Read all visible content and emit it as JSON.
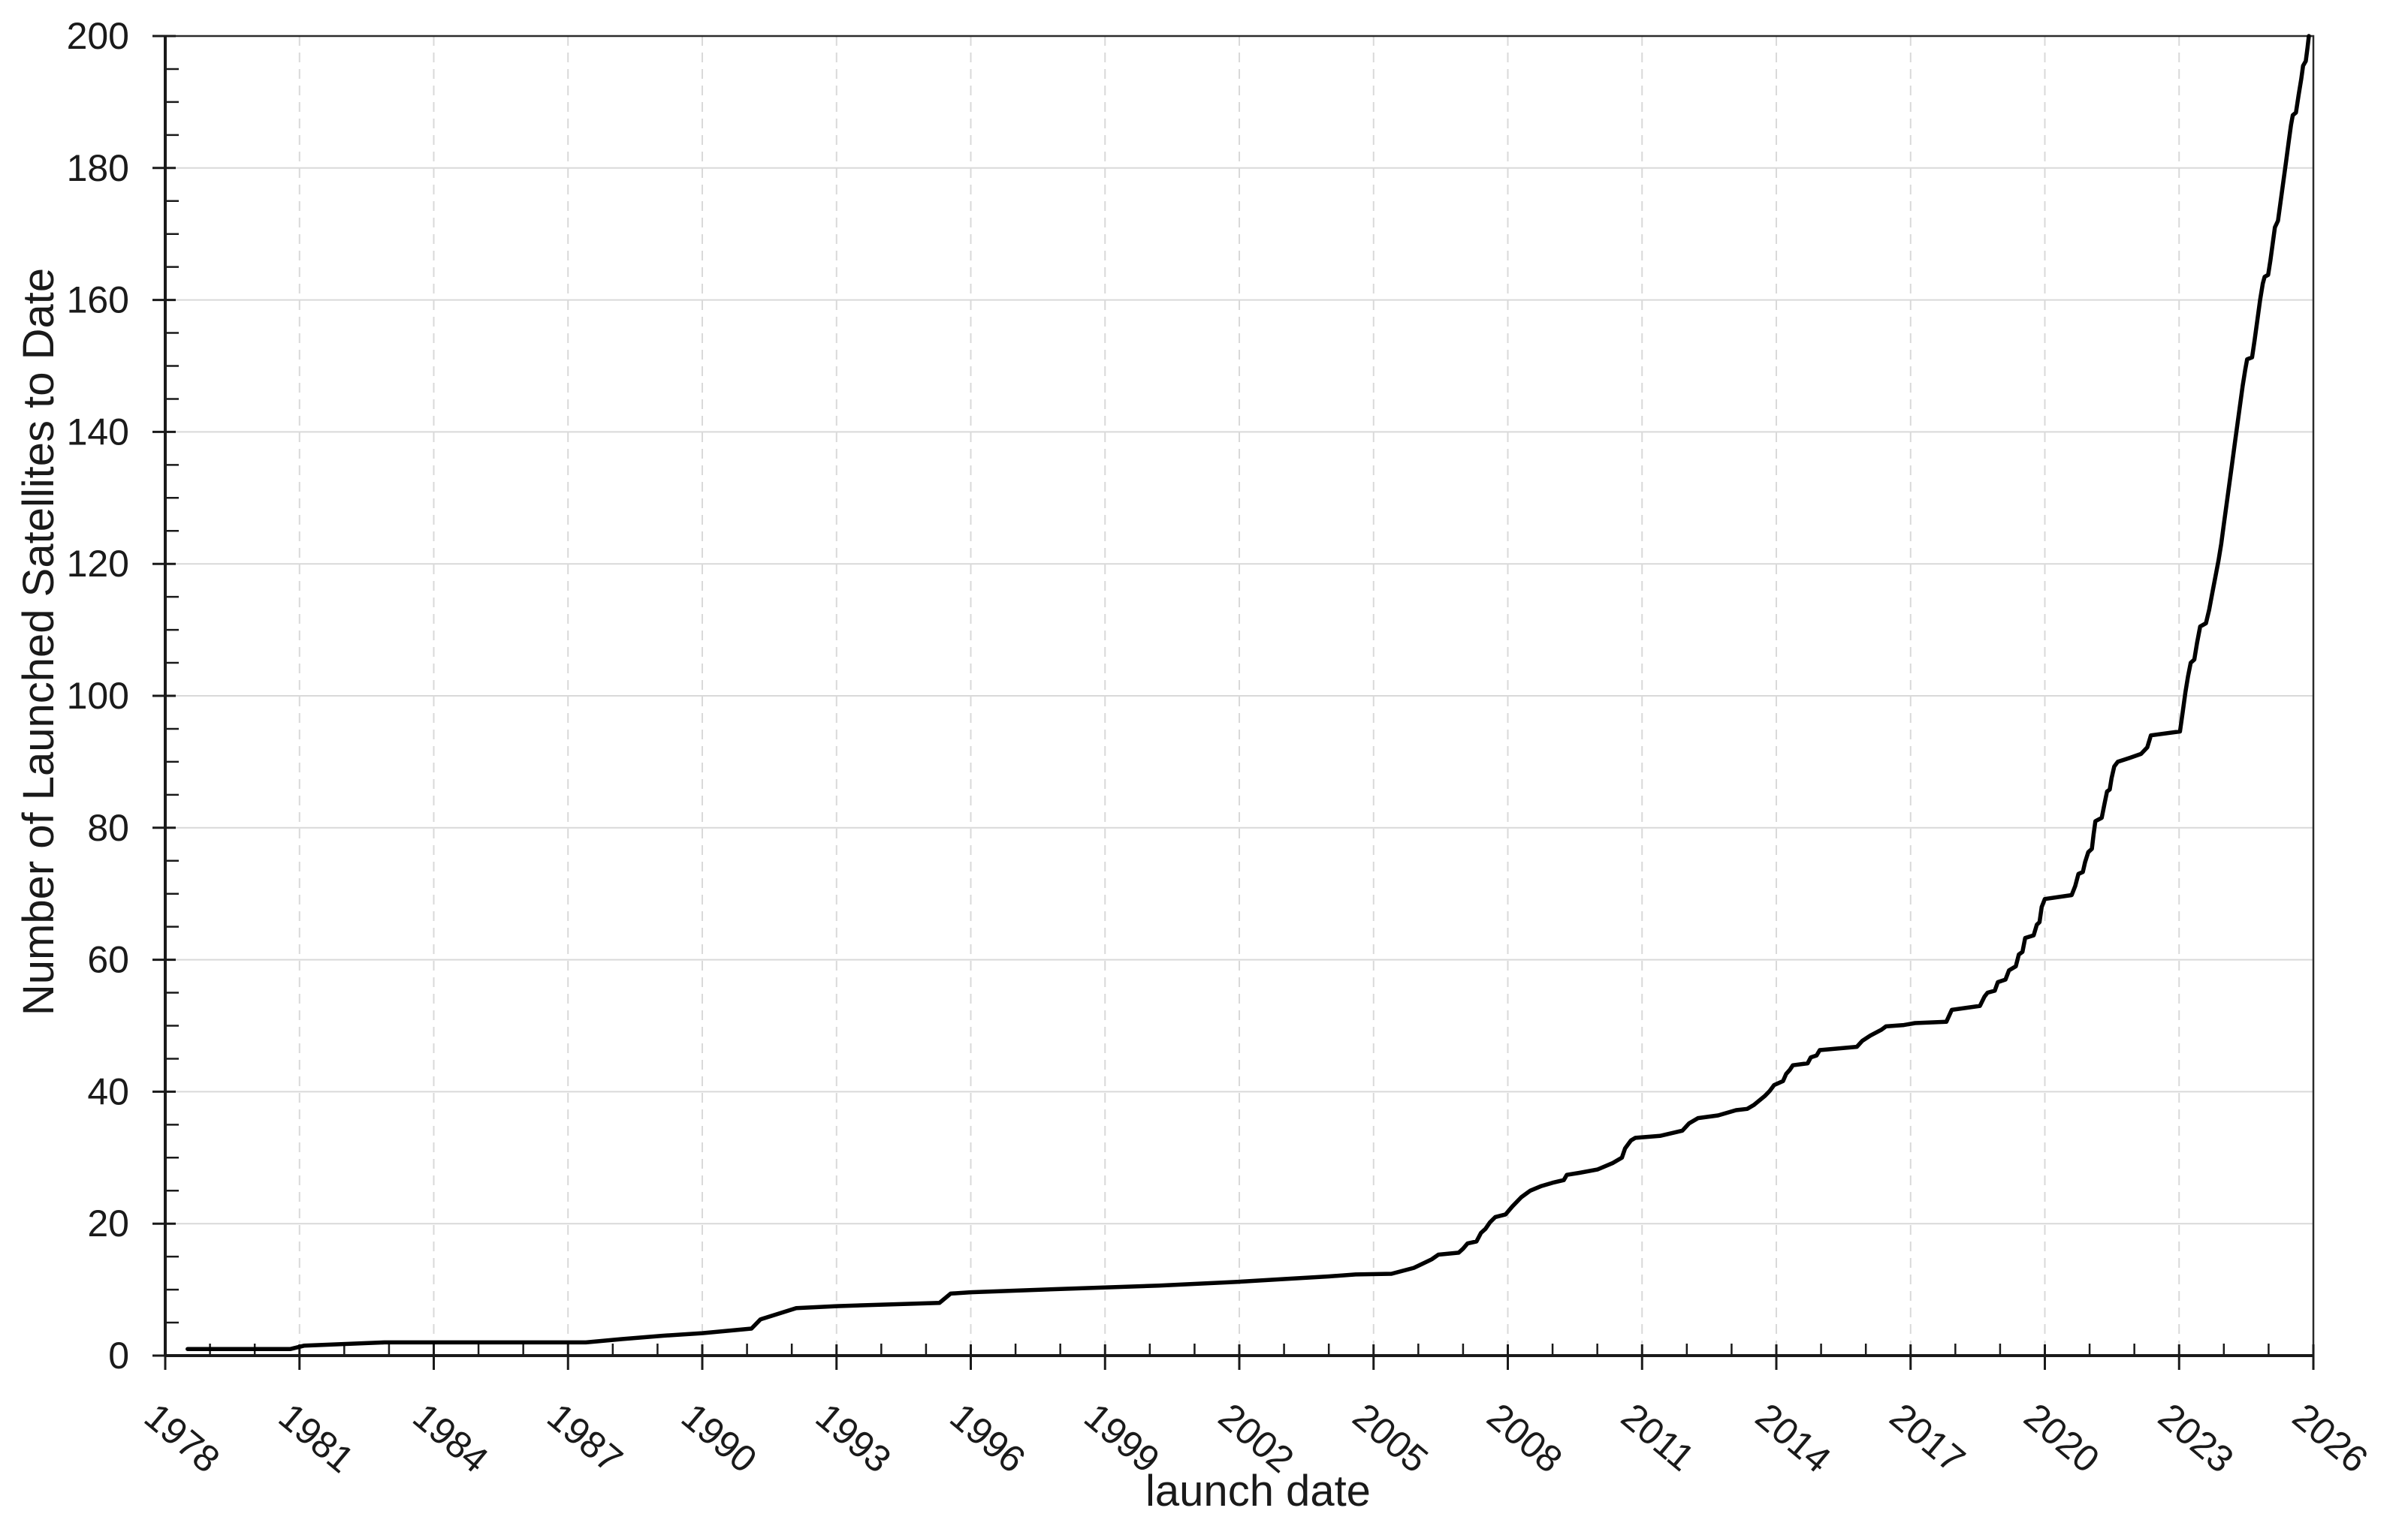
{
  "chart_data": {
    "type": "line",
    "title": "",
    "xlabel": "launch date",
    "ylabel": "Number of Launched Satellites to Date",
    "xlim": [
      1978,
      2026
    ],
    "ylim": [
      0,
      200
    ],
    "x_ticks_major": [
      1978,
      1981,
      1984,
      1987,
      1990,
      1993,
      1996,
      1999,
      2002,
      2005,
      2008,
      2011,
      2014,
      2017,
      2020,
      2023,
      2026
    ],
    "y_ticks_major": [
      0,
      20,
      40,
      60,
      80,
      100,
      120,
      140,
      160,
      180,
      200
    ],
    "x_minor_tick_interval_years": 1,
    "y_minor_tick_interval": 5,
    "grid": {
      "horizontal": "solid",
      "vertical": "dashed",
      "position": "major-ticks-only"
    },
    "legend": "none",
    "colors": {
      "line": "#000000",
      "grid": "#d9d9d9",
      "axis": "#1a1a1a",
      "border": "#2b2b2b",
      "text": "#1a1a1a",
      "background": "#ffffff"
    },
    "series": [
      {
        "points": [
          [
            1978.5,
            1
          ],
          [
            1980.8,
            1
          ],
          [
            1981.1,
            1.5
          ],
          [
            1982.9,
            2
          ],
          [
            1987.4,
            2
          ],
          [
            1988.2,
            2.5
          ],
          [
            1989.1,
            3
          ],
          [
            1990,
            3.4
          ],
          [
            1991.1,
            4.1
          ],
          [
            1991.3,
            5.5
          ],
          [
            1992.1,
            7.2
          ],
          [
            1993,
            7.5
          ],
          [
            1995.3,
            8
          ],
          [
            1995.55,
            9.4
          ],
          [
            1996,
            9.6
          ],
          [
            1998,
            10.1
          ],
          [
            2000.2,
            10.6
          ],
          [
            2002,
            11.2
          ],
          [
            2003,
            11.6
          ],
          [
            2004,
            12
          ],
          [
            2004.6,
            12.3
          ],
          [
            2005.4,
            12.4
          ],
          [
            2005.9,
            13.3
          ],
          [
            2006.3,
            14.6
          ],
          [
            2006.45,
            15.3
          ],
          [
            2006.9,
            15.6
          ],
          [
            2007,
            16.2
          ],
          [
            2007.1,
            17
          ],
          [
            2007.3,
            17.3
          ],
          [
            2007.4,
            18.6
          ],
          [
            2007.5,
            19.2
          ],
          [
            2007.6,
            20.2
          ],
          [
            2007.72,
            21
          ],
          [
            2007.95,
            21.4
          ],
          [
            2008.1,
            22.6
          ],
          [
            2008.3,
            24
          ],
          [
            2008.5,
            25
          ],
          [
            2008.75,
            25.7
          ],
          [
            2009,
            26.2
          ],
          [
            2009.25,
            26.6
          ],
          [
            2009.32,
            27.4
          ],
          [
            2009.6,
            27.7
          ],
          [
            2010,
            28.2
          ],
          [
            2010.35,
            29.2
          ],
          [
            2010.55,
            30
          ],
          [
            2010.62,
            31.4
          ],
          [
            2010.75,
            32.6
          ],
          [
            2010.85,
            33
          ],
          [
            2011.4,
            33.3
          ],
          [
            2011.65,
            33.7
          ],
          [
            2011.9,
            34.1
          ],
          [
            2012.05,
            35.2
          ],
          [
            2012.25,
            36
          ],
          [
            2012.7,
            36.4
          ],
          [
            2013.1,
            37.2
          ],
          [
            2013.35,
            37.4
          ],
          [
            2013.5,
            38
          ],
          [
            2013.75,
            39.4
          ],
          [
            2013.85,
            40.1
          ],
          [
            2013.95,
            41
          ],
          [
            2014.15,
            41.6
          ],
          [
            2014.22,
            42.7
          ],
          [
            2014.3,
            43.3
          ],
          [
            2014.37,
            44
          ],
          [
            2014.7,
            44.3
          ],
          [
            2014.77,
            45.2
          ],
          [
            2014.9,
            45.5
          ],
          [
            2014.97,
            46.3
          ],
          [
            2015.8,
            46.8
          ],
          [
            2015.92,
            47.7
          ],
          [
            2016.1,
            48.5
          ],
          [
            2016.35,
            49.4
          ],
          [
            2016.45,
            49.9
          ],
          [
            2016.85,
            50.1
          ],
          [
            2017.1,
            50.4
          ],
          [
            2017.8,
            50.6
          ],
          [
            2017.92,
            52.4
          ],
          [
            2018.55,
            53
          ],
          [
            2018.65,
            54.4
          ],
          [
            2018.72,
            55
          ],
          [
            2018.88,
            55.3
          ],
          [
            2018.95,
            56.6
          ],
          [
            2019.12,
            57
          ],
          [
            2019.2,
            58.4
          ],
          [
            2019.35,
            59
          ],
          [
            2019.42,
            60.8
          ],
          [
            2019.5,
            61.2
          ],
          [
            2019.56,
            63.3
          ],
          [
            2019.75,
            63.7
          ],
          [
            2019.82,
            65.3
          ],
          [
            2019.88,
            65.7
          ],
          [
            2019.93,
            68
          ],
          [
            2020,
            69.2
          ],
          [
            2020.6,
            69.8
          ],
          [
            2020.68,
            71.2
          ],
          [
            2020.75,
            73
          ],
          [
            2020.85,
            73.3
          ],
          [
            2020.9,
            74.8
          ],
          [
            2020.97,
            76.3
          ],
          [
            2021.05,
            76.8
          ],
          [
            2021.09,
            79
          ],
          [
            2021.13,
            81
          ],
          [
            2021.27,
            81.5
          ],
          [
            2021.33,
            83.5
          ],
          [
            2021.39,
            85.5
          ],
          [
            2021.45,
            85.8
          ],
          [
            2021.49,
            87.5
          ],
          [
            2021.55,
            89.3
          ],
          [
            2021.63,
            90
          ],
          [
            2021.9,
            90.6
          ],
          [
            2022.15,
            91.2
          ],
          [
            2022.29,
            92.2
          ],
          [
            2022.37,
            94
          ],
          [
            2023.02,
            94.6
          ],
          [
            2023.08,
            97.5
          ],
          [
            2023.14,
            100.5
          ],
          [
            2023.2,
            103
          ],
          [
            2023.26,
            105
          ],
          [
            2023.34,
            105.5
          ],
          [
            2023.4,
            108
          ],
          [
            2023.47,
            110.5
          ],
          [
            2023.6,
            111
          ],
          [
            2023.67,
            113
          ],
          [
            2023.74,
            115.5
          ],
          [
            2023.81,
            118
          ],
          [
            2023.88,
            120.5
          ],
          [
            2023.94,
            123
          ],
          [
            2024,
            126
          ],
          [
            2024.06,
            129
          ],
          [
            2024.12,
            132
          ],
          [
            2024.18,
            135
          ],
          [
            2024.24,
            138
          ],
          [
            2024.3,
            141
          ],
          [
            2024.36,
            144
          ],
          [
            2024.42,
            147
          ],
          [
            2024.48,
            149.5
          ],
          [
            2024.52,
            151
          ],
          [
            2024.63,
            151.3
          ],
          [
            2024.69,
            154
          ],
          [
            2024.75,
            157
          ],
          [
            2024.81,
            160
          ],
          [
            2024.87,
            162.5
          ],
          [
            2024.91,
            163.5
          ],
          [
            2024.99,
            163.8
          ],
          [
            2025.04,
            166
          ],
          [
            2025.09,
            168.5
          ],
          [
            2025.14,
            171
          ],
          [
            2025.21,
            172
          ],
          [
            2025.27,
            175
          ],
          [
            2025.33,
            178
          ],
          [
            2025.39,
            181
          ],
          [
            2025.45,
            184
          ],
          [
            2025.5,
            186.5
          ],
          [
            2025.54,
            188
          ],
          [
            2025.61,
            188.4
          ],
          [
            2025.67,
            191
          ],
          [
            2025.73,
            193.5
          ],
          [
            2025.77,
            195.5
          ],
          [
            2025.83,
            196.2
          ],
          [
            2025.87,
            198.3
          ],
          [
            2025.9,
            200
          ]
        ]
      }
    ]
  }
}
